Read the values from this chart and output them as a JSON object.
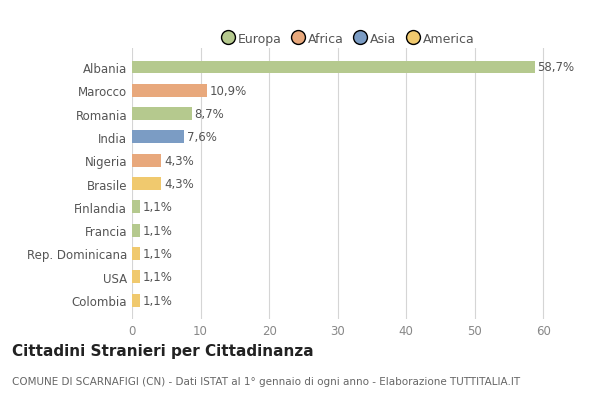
{
  "countries": [
    "Albania",
    "Marocco",
    "Romania",
    "India",
    "Nigeria",
    "Brasile",
    "Finlandia",
    "Francia",
    "Rep. Dominicana",
    "USA",
    "Colombia"
  ],
  "values": [
    58.7,
    10.9,
    8.7,
    7.6,
    4.3,
    4.3,
    1.1,
    1.1,
    1.1,
    1.1,
    1.1
  ],
  "labels": [
    "58,7%",
    "10,9%",
    "8,7%",
    "7,6%",
    "4,3%",
    "4,3%",
    "1,1%",
    "1,1%",
    "1,1%",
    "1,1%",
    "1,1%"
  ],
  "colors": [
    "#b5c98e",
    "#e8a87c",
    "#b5c98e",
    "#7b9cc4",
    "#e8a87c",
    "#f0c96e",
    "#b5c98e",
    "#b5c98e",
    "#f0c96e",
    "#f0c96e",
    "#f0c96e"
  ],
  "legend_labels": [
    "Europa",
    "Africa",
    "Asia",
    "America"
  ],
  "legend_colors": [
    "#b5c98e",
    "#e8a87c",
    "#7b9cc4",
    "#f0c96e"
  ],
  "title": "Cittadini Stranieri per Cittadinanza",
  "subtitle": "COMUNE DI SCARNAFIGI (CN) - Dati ISTAT al 1° gennaio di ogni anno - Elaborazione TUTTITALIA.IT",
  "xlim": [
    0,
    63
  ],
  "xticks": [
    0,
    10,
    20,
    30,
    40,
    50,
    60
  ],
  "background_color": "#ffffff",
  "grid_color": "#d5d5d5",
  "bar_height": 0.55,
  "title_fontsize": 11,
  "subtitle_fontsize": 7.5,
  "label_fontsize": 8.5,
  "tick_fontsize": 8.5,
  "legend_fontsize": 9
}
